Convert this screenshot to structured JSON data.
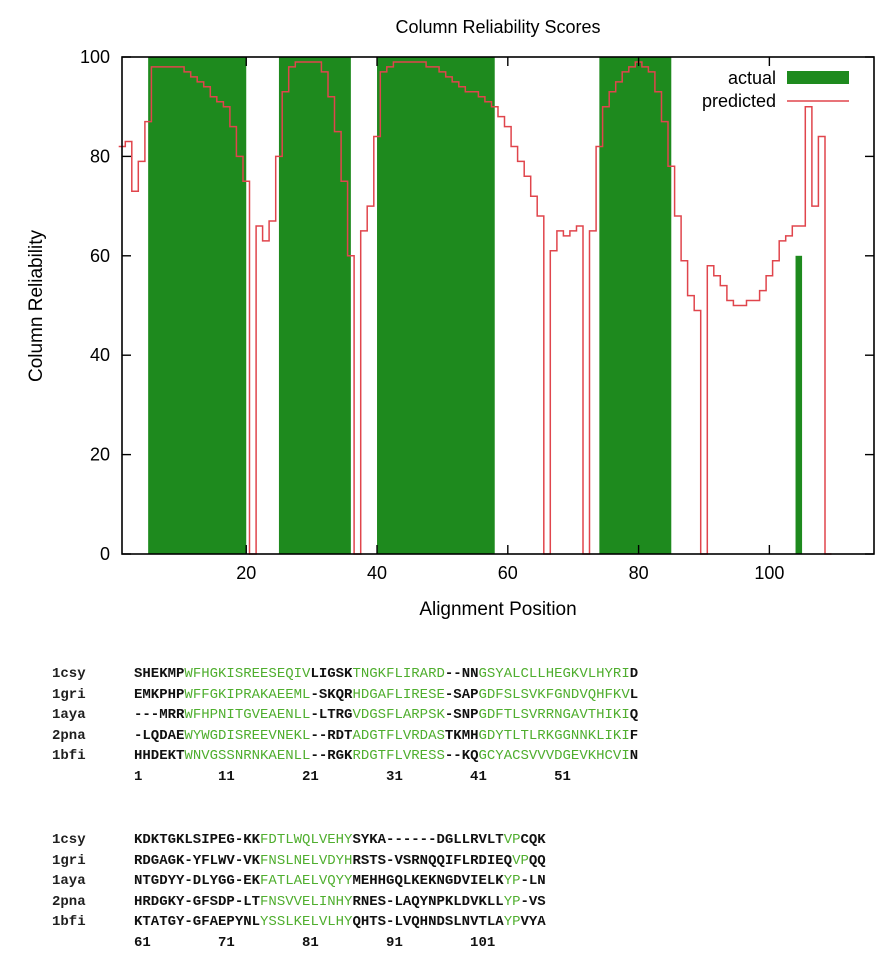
{
  "chart_data": {
    "type": "area",
    "title": "Column Reliability Scores",
    "xlabel": "Alignment Position",
    "ylabel": "Column Reliability",
    "xlim": [
      1,
      116
    ],
    "ylim": [
      0,
      100
    ],
    "xticks": [
      20,
      40,
      60,
      80,
      100
    ],
    "yticks": [
      0,
      20,
      40,
      60,
      80,
      100
    ],
    "grid": false,
    "legend_position": "top-right",
    "colors": {
      "actual": "#1e8a1e",
      "predicted": "#e0454c"
    },
    "series": [
      {
        "name": "actual",
        "kind": "bars",
        "segments": [
          {
            "start": 5,
            "end": 20,
            "value": 100
          },
          {
            "start": 25,
            "end": 36,
            "value": 100
          },
          {
            "start": 40,
            "end": 58,
            "value": 100
          },
          {
            "start": 74,
            "end": 85,
            "value": 100
          },
          {
            "start": 104,
            "end": 105,
            "value": 60
          }
        ]
      },
      {
        "name": "predicted",
        "kind": "step",
        "points": [
          [
            1,
            82
          ],
          [
            2,
            83
          ],
          [
            3,
            73
          ],
          [
            4,
            79
          ],
          [
            5,
            87
          ],
          [
            6,
            98
          ],
          [
            7,
            98
          ],
          [
            8,
            98
          ],
          [
            9,
            98
          ],
          [
            10,
            98
          ],
          [
            11,
            97
          ],
          [
            12,
            96
          ],
          [
            13,
            95
          ],
          [
            14,
            94
          ],
          [
            15,
            92
          ],
          [
            16,
            91
          ],
          [
            17,
            90
          ],
          [
            18,
            86
          ],
          [
            19,
            80
          ],
          [
            20,
            75
          ],
          [
            21,
            0
          ],
          [
            22,
            66
          ],
          [
            23,
            63
          ],
          [
            24,
            67
          ],
          [
            25,
            80
          ],
          [
            26,
            93
          ],
          [
            27,
            98
          ],
          [
            28,
            99
          ],
          [
            29,
            99
          ],
          [
            30,
            99
          ],
          [
            31,
            99
          ],
          [
            32,
            97
          ],
          [
            33,
            92
          ],
          [
            34,
            85
          ],
          [
            35,
            75
          ],
          [
            36,
            60
          ],
          [
            37,
            0
          ],
          [
            38,
            65
          ],
          [
            39,
            70
          ],
          [
            40,
            84
          ],
          [
            41,
            97
          ],
          [
            42,
            98
          ],
          [
            43,
            99
          ],
          [
            44,
            99
          ],
          [
            45,
            99
          ],
          [
            46,
            99
          ],
          [
            47,
            99
          ],
          [
            48,
            98
          ],
          [
            49,
            98
          ],
          [
            50,
            97
          ],
          [
            51,
            96
          ],
          [
            52,
            95
          ],
          [
            53,
            94
          ],
          [
            54,
            93
          ],
          [
            55,
            93
          ],
          [
            56,
            92
          ],
          [
            57,
            91
          ],
          [
            58,
            90
          ],
          [
            59,
            88
          ],
          [
            60,
            86
          ],
          [
            61,
            82
          ],
          [
            62,
            79
          ],
          [
            63,
            76
          ],
          [
            64,
            72
          ],
          [
            65,
            68
          ],
          [
            66,
            0
          ],
          [
            67,
            61
          ],
          [
            68,
            65
          ],
          [
            69,
            64
          ],
          [
            70,
            65
          ],
          [
            71,
            66
          ],
          [
            72,
            0
          ],
          [
            73,
            65
          ],
          [
            74,
            82
          ],
          [
            75,
            90
          ],
          [
            76,
            93
          ],
          [
            77,
            95
          ],
          [
            78,
            97
          ],
          [
            79,
            98
          ],
          [
            80,
            99
          ],
          [
            81,
            98
          ],
          [
            82,
            97
          ],
          [
            83,
            93
          ],
          [
            84,
            87
          ],
          [
            85,
            78
          ],
          [
            86,
            68
          ],
          [
            87,
            59
          ],
          [
            88,
            52
          ],
          [
            89,
            49
          ],
          [
            90,
            0
          ],
          [
            91,
            58
          ],
          [
            92,
            56
          ],
          [
            93,
            54
          ],
          [
            94,
            51
          ],
          [
            95,
            50
          ],
          [
            96,
            50
          ],
          [
            97,
            51
          ],
          [
            98,
            51
          ],
          [
            99,
            53
          ],
          [
            100,
            56
          ],
          [
            101,
            59
          ],
          [
            102,
            63
          ],
          [
            103,
            64
          ],
          [
            104,
            66
          ],
          [
            105,
            66
          ],
          [
            106,
            90
          ],
          [
            107,
            70
          ],
          [
            108,
            84
          ],
          [
            109,
            0
          ]
        ]
      }
    ]
  },
  "alignment": {
    "blocks": [
      {
        "rows": [
          {
            "name": "1csy",
            "segments": [
              {
                "text": "SHEKMP",
                "core": false
              },
              {
                "text": "WFHGKISREESEQIV",
                "core": true
              },
              {
                "text": "LIGSK",
                "core": false
              },
              {
                "text": "TNGKFLIRARD",
                "core": true
              },
              {
                "text": "--NN",
                "core": false
              },
              {
                "text": "GSYALCLLHEGKVLHYRI",
                "core": true
              },
              {
                "text": "D",
                "core": false
              }
            ]
          },
          {
            "name": "1gri",
            "segments": [
              {
                "text": "EMKPHP",
                "core": false
              },
              {
                "text": "WFFGKIPRAKAEEML",
                "core": true
              },
              {
                "text": "-SKQR",
                "core": false
              },
              {
                "text": "HDGAFLIRESE",
                "core": true
              },
              {
                "text": "-SAP",
                "core": false
              },
              {
                "text": "GDFSLSVKFGNDVQHFKV",
                "core": true
              },
              {
                "text": "L",
                "core": false
              }
            ]
          },
          {
            "name": "1aya",
            "segments": [
              {
                "text": "---MRR",
                "core": false
              },
              {
                "text": "WFHPNITGVEAENLL",
                "core": true
              },
              {
                "text": "-LTRG",
                "core": false
              },
              {
                "text": "VDGSFLARPSK",
                "core": true
              },
              {
                "text": "-SNP",
                "core": false
              },
              {
                "text": "GDFTLSVRRNGAVTHIKI",
                "core": true
              },
              {
                "text": "Q",
                "core": false
              }
            ]
          },
          {
            "name": "2pna",
            "segments": [
              {
                "text": "-LQDAE",
                "core": false
              },
              {
                "text": "WYWGDISREEVNEKL",
                "core": true
              },
              {
                "text": "--RDT",
                "core": false
              },
              {
                "text": "ADGTFLVRDAS",
                "core": true
              },
              {
                "text": "TKMH",
                "core": false
              },
              {
                "text": "GDYTLTLRKGGNNKLIKI",
                "core": true
              },
              {
                "text": "F",
                "core": false
              }
            ]
          },
          {
            "name": "1bfi",
            "segments": [
              {
                "text": "HHDEKT",
                "core": false
              },
              {
                "text": "WNVGSSNRNKAENLL",
                "core": true
              },
              {
                "text": "--RGK",
                "core": false
              },
              {
                "text": "RDGTFLVRESS",
                "core": true
              },
              {
                "text": "--KQ",
                "core": false
              },
              {
                "text": "GCYACSVVVDGEVKHCVI",
                "core": true
              },
              {
                "text": "N",
                "core": false
              }
            ]
          }
        ],
        "ruler": "1         11        21        31        41        51"
      },
      {
        "rows": [
          {
            "name": "1csy",
            "segments": [
              {
                "text": "KDKTGKLSIPEG-KK",
                "core": false
              },
              {
                "text": "FDTLWQLVEHY",
                "core": true
              },
              {
                "text": "SYKA------DGLLRVLT",
                "core": false
              },
              {
                "text": "VP",
                "core": true
              },
              {
                "text": "CQK",
                "core": false
              }
            ]
          },
          {
            "name": "1gri",
            "segments": [
              {
                "text": "RDGAGK-YFLWV-VK",
                "core": false
              },
              {
                "text": "FNSLNELVDYH",
                "core": true
              },
              {
                "text": "RSTS-VSRNQQIFLRDIEQ",
                "core": false
              },
              {
                "text": "VP",
                "core": true
              },
              {
                "text": "QQ",
                "core": false
              }
            ]
          },
          {
            "name": "1aya",
            "segments": [
              {
                "text": "NTGDYY-DLYGG-EK",
                "core": false
              },
              {
                "text": "FATLAELVQYY",
                "core": true
              },
              {
                "text": "MEHHGQLKEKNGDVIELK",
                "core": false
              },
              {
                "text": "YP",
                "core": true
              },
              {
                "text": "-LN",
                "core": false
              }
            ]
          },
          {
            "name": "2pna",
            "segments": [
              {
                "text": "HRDGKY-GFSDP-LT",
                "core": false
              },
              {
                "text": "FNSVVELINHY",
                "core": true
              },
              {
                "text": "RNES-LAQYNPKLDVKLL",
                "core": false
              },
              {
                "text": "YP",
                "core": true
              },
              {
                "text": "-VS",
                "core": false
              }
            ]
          },
          {
            "name": "1bfi",
            "segments": [
              {
                "text": "KTATGY-GFAEPYNL",
                "core": false
              },
              {
                "text": "YSSLKELVLHY",
                "core": true
              },
              {
                "text": "QHTS-LVQHNDSLNVTLA",
                "core": false
              },
              {
                "text": "YP",
                "core": true
              },
              {
                "text": "VYA",
                "core": false
              }
            ]
          }
        ],
        "ruler": "61        71        81        91        101"
      }
    ]
  }
}
